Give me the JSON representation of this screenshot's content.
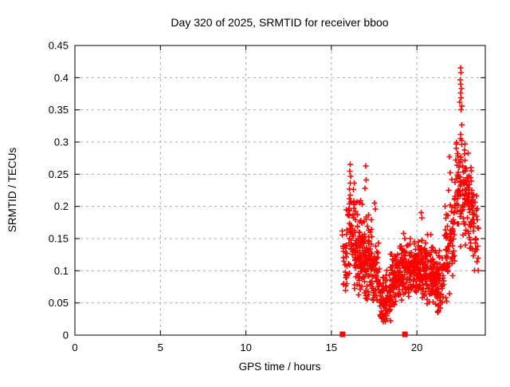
{
  "page": {
    "background": "#ffffff"
  },
  "chart_data": {
    "type": "scatter",
    "title": "Day 320 of 2025, SRMTID for receiver bboo",
    "xlabel": "GPS time / hours",
    "ylabel": "SRMTID / TECUs",
    "xlim": [
      0,
      24
    ],
    "ylim": [
      0,
      0.45
    ],
    "xticks": [
      0,
      5,
      10,
      15,
      20
    ],
    "xtick_labels": [
      "0",
      "5",
      "10",
      "15",
      "20"
    ],
    "yticks": [
      0,
      0.05,
      0.1,
      0.15,
      0.2,
      0.25,
      0.3,
      0.35,
      0.4,
      0.45
    ],
    "ytick_labels": [
      "0",
      "0.05",
      "0.1",
      "0.15",
      "0.2",
      "0.25",
      "0.3",
      "0.35",
      "0.4",
      "0.45"
    ],
    "grid": true,
    "legend": "none",
    "marker": "plus-cross",
    "colors": {
      "marker": "#ff0000",
      "grid": "#aaaaaa",
      "frame": "#000000",
      "text": "#000000"
    },
    "baseline_markers": {
      "shape": "filled-square",
      "y": 0,
      "x": [
        15.65,
        19.3
      ]
    },
    "series": [
      {
        "name": "SRMTID for receiver bboo",
        "extent_note": "no data from 0 to ~15.6 h; dense scatter 15.6-23.6 h; dip to ~0.02 TECUs near 18.1 h and ~0.035 near 21.3 h; spike up to ~0.415 TECUs near 22.6 h",
        "cluster_format": [
          "t_start_h",
          "t_end_h",
          "n_points",
          "y_center_start",
          "y_center_end",
          "y_spread",
          "y_min",
          "y_max"
        ],
        "clusters": [
          [
            15.6,
            15.95,
            30,
            0.13,
            0.14,
            0.045,
            0.065,
            0.21
          ],
          [
            15.95,
            16.35,
            45,
            0.17,
            0.16,
            0.05,
            0.095,
            0.265
          ],
          [
            16.35,
            16.8,
            85,
            0.13,
            0.125,
            0.045,
            0.062,
            0.225
          ],
          [
            16.8,
            17.35,
            90,
            0.12,
            0.11,
            0.045,
            0.055,
            0.225
          ],
          [
            17.35,
            17.8,
            55,
            0.1,
            0.09,
            0.04,
            0.05,
            0.21
          ],
          [
            17.8,
            18.45,
            95,
            0.055,
            0.06,
            0.025,
            0.02,
            0.125
          ],
          [
            18.45,
            19.0,
            75,
            0.08,
            0.09,
            0.028,
            0.04,
            0.155
          ],
          [
            19.0,
            19.6,
            85,
            0.105,
            0.1,
            0.028,
            0.05,
            0.17
          ],
          [
            19.6,
            20.3,
            110,
            0.105,
            0.105,
            0.03,
            0.055,
            0.18
          ],
          [
            20.3,
            21.0,
            100,
            0.1,
            0.09,
            0.032,
            0.045,
            0.17
          ],
          [
            21.0,
            21.6,
            80,
            0.08,
            0.09,
            0.03,
            0.035,
            0.155
          ],
          [
            21.6,
            22.2,
            70,
            0.12,
            0.16,
            0.045,
            0.05,
            0.25
          ],
          [
            22.2,
            22.7,
            65,
            0.21,
            0.24,
            0.06,
            0.1,
            0.36
          ],
          [
            22.7,
            23.2,
            70,
            0.24,
            0.2,
            0.055,
            0.13,
            0.36
          ],
          [
            23.2,
            23.62,
            40,
            0.19,
            0.17,
            0.045,
            0.1,
            0.3
          ]
        ],
        "outliers": [
          [
            16.07,
            0.255
          ],
          [
            16.1,
            0.265
          ],
          [
            16.13,
            0.247
          ],
          [
            16.09,
            0.236
          ],
          [
            16.05,
            0.227
          ],
          [
            17.0,
            0.263
          ],
          [
            17.03,
            0.241
          ],
          [
            16.97,
            0.228
          ],
          [
            17.52,
            0.205
          ],
          [
            17.58,
            0.196
          ],
          [
            18.05,
            0.028
          ],
          [
            18.12,
            0.024
          ],
          [
            20.25,
            0.19
          ],
          [
            20.3,
            0.182
          ],
          [
            21.28,
            0.038
          ],
          [
            21.36,
            0.042
          ],
          [
            21.85,
            0.225
          ],
          [
            21.9,
            0.277
          ],
          [
            21.96,
            0.252
          ],
          [
            22.05,
            0.242
          ],
          [
            22.56,
            0.415
          ],
          [
            22.59,
            0.408
          ],
          [
            22.53,
            0.397
          ],
          [
            22.56,
            0.39
          ],
          [
            22.61,
            0.383
          ],
          [
            22.55,
            0.376
          ],
          [
            22.58,
            0.369
          ],
          [
            22.51,
            0.362
          ],
          [
            22.63,
            0.356
          ],
          [
            22.57,
            0.35
          ],
          [
            23.45,
            0.133
          ],
          [
            23.5,
            0.114
          ]
        ]
      }
    ],
    "seed": 1320
  }
}
